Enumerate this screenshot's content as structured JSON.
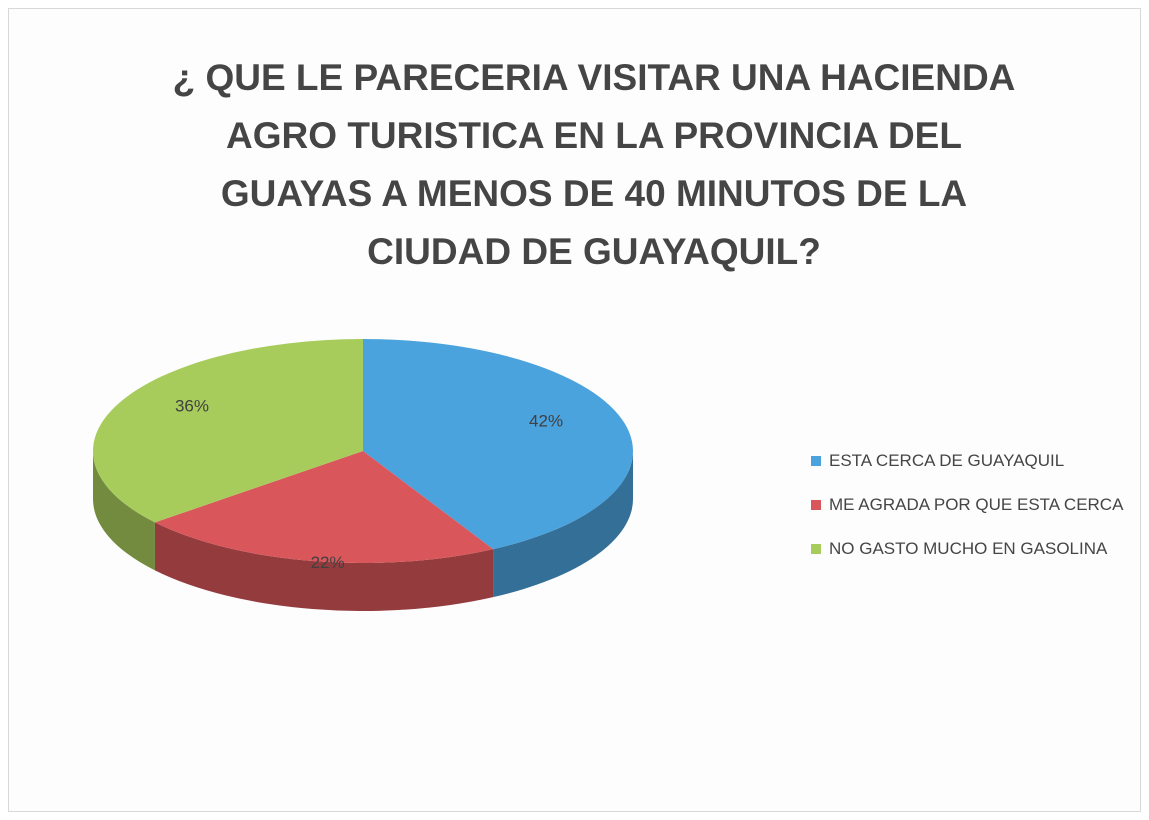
{
  "chart_data": {
    "type": "pie",
    "title": "¿ QUE LE PARECERIA VISITAR UNA HACIENDA AGRO TURISTICA EN LA PROVINCIA DEL GUAYAS A MENOS DE 40 MINUTOS DE LA CIUDAD DE GUAYAQUIL?",
    "categories": [
      "ESTA CERCA DE GUAYAQUIL",
      "ME AGRADA POR QUE ESTA CERCA",
      "NO GASTO MUCHO EN GASOLINA"
    ],
    "values": [
      42,
      22,
      36
    ],
    "value_labels": [
      "42%",
      "22%",
      "36%"
    ],
    "colors": [
      "#4ba3de",
      "#d9575b",
      "#a8cc5c"
    ],
    "legend": "right"
  }
}
